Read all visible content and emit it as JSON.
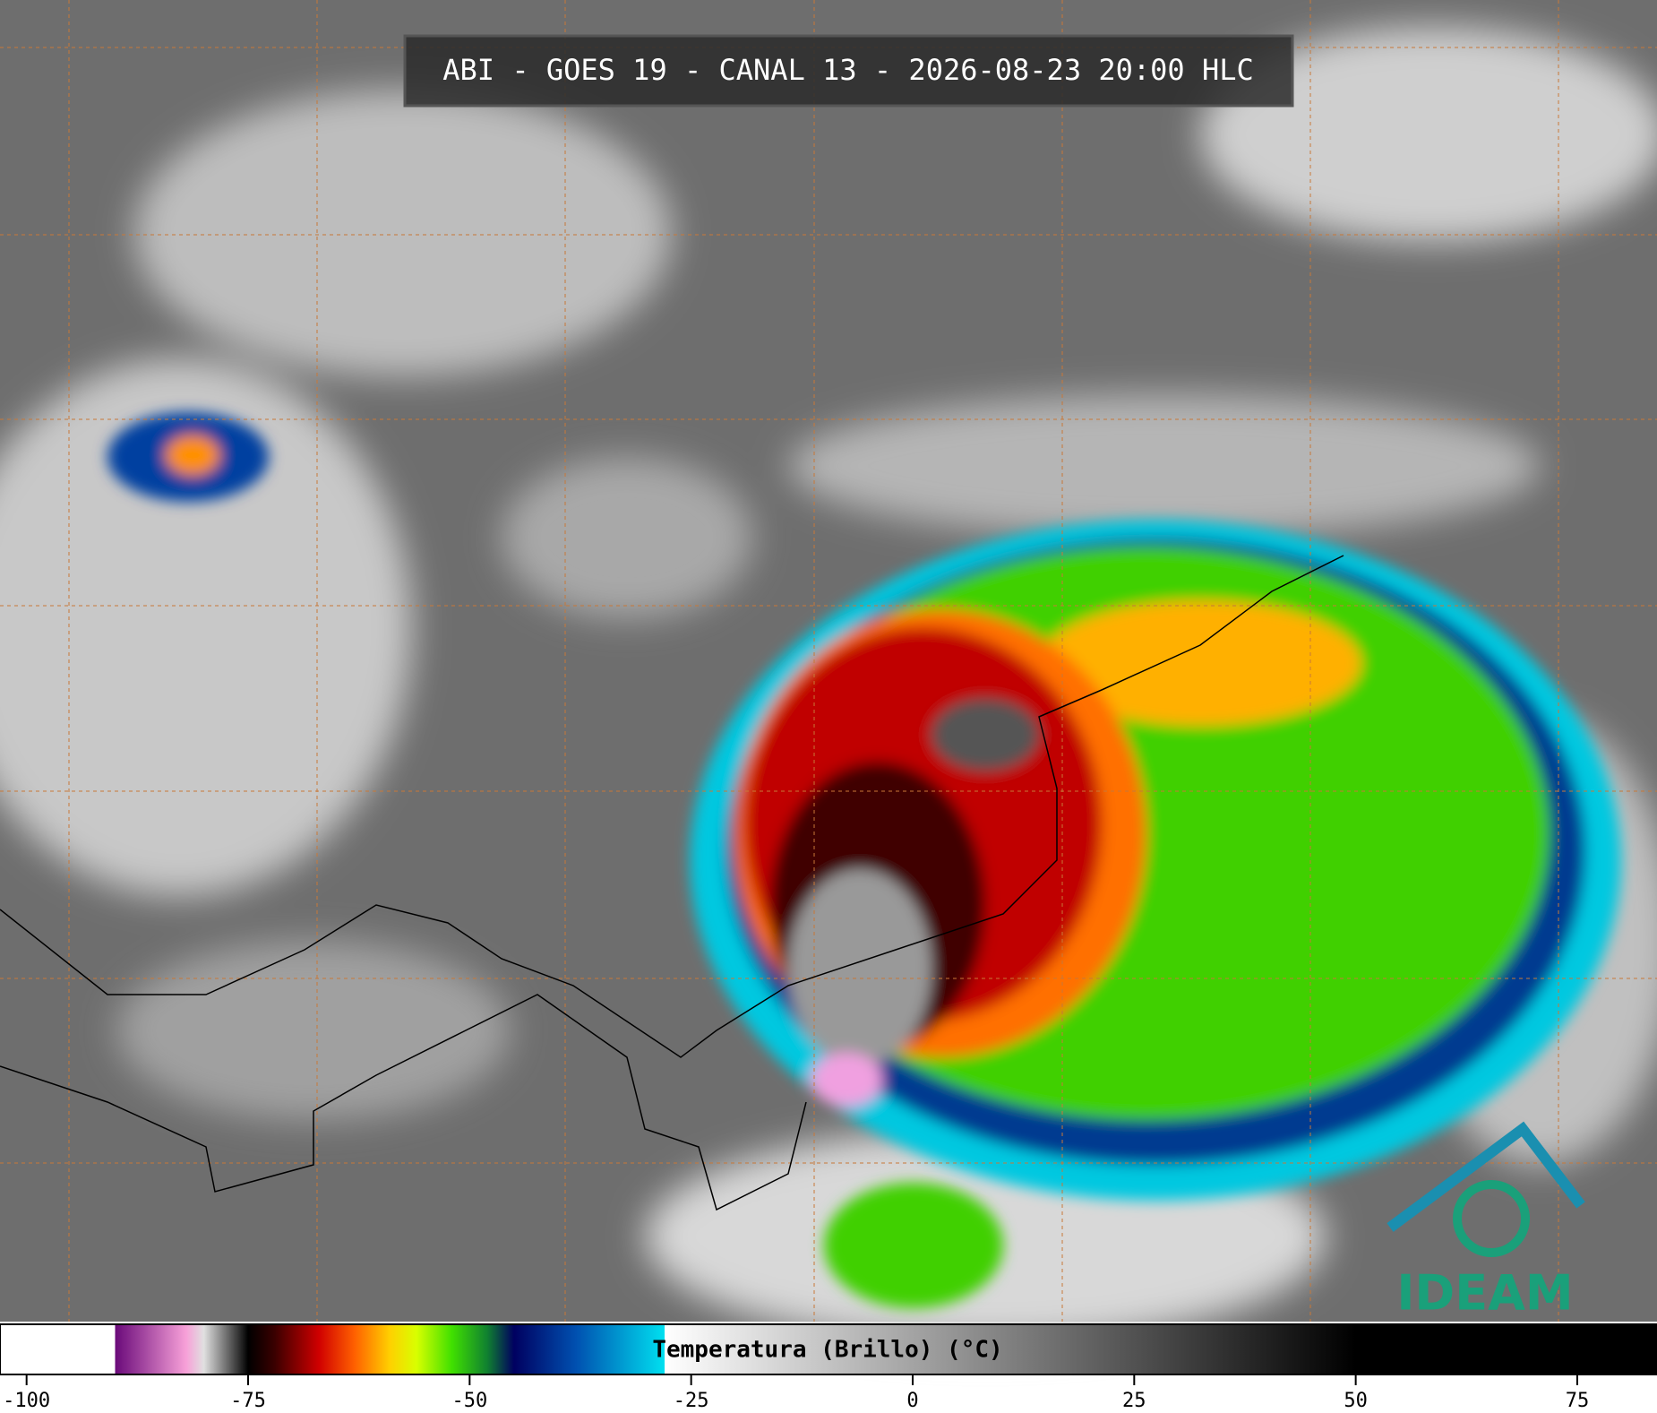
{
  "header": {
    "title": "ABI - GOES 19 - CANAL 13 - 2026-08-23 20:00 HLC"
  },
  "colorbar": {
    "label": "Temperatura (Brillo) (°C)",
    "lim": [
      -103,
      84
    ],
    "ticks": [
      -100,
      -75,
      -50,
      -25,
      0,
      25,
      50,
      75
    ],
    "stops": [
      {
        "value": -90,
        "color": "#ffffff"
      },
      {
        "value": -90,
        "color": "#6a0a7a"
      },
      {
        "value": -82,
        "color": "#f7a0d8"
      },
      {
        "value": -80,
        "color": "#e0e0e0"
      },
      {
        "value": -76,
        "color": "#303030"
      },
      {
        "value": -75,
        "color": "#000000"
      },
      {
        "value": -72,
        "color": "#3a0000"
      },
      {
        "value": -67,
        "color": "#d00000"
      },
      {
        "value": -63,
        "color": "#ff6000"
      },
      {
        "value": -59,
        "color": "#ffd000"
      },
      {
        "value": -56,
        "color": "#d8ff00"
      },
      {
        "value": -52,
        "color": "#40e000"
      },
      {
        "value": -48,
        "color": "#108030"
      },
      {
        "value": -45,
        "color": "#000060"
      },
      {
        "value": -38,
        "color": "#0050b0"
      },
      {
        "value": -28,
        "color": "#00e0f0"
      },
      {
        "value": -28,
        "color": "#ffffff"
      },
      {
        "value": 50,
        "color": "#000000"
      },
      {
        "value": 84,
        "color": "#000000"
      }
    ]
  },
  "logo": {
    "text": "IDEAM"
  }
}
